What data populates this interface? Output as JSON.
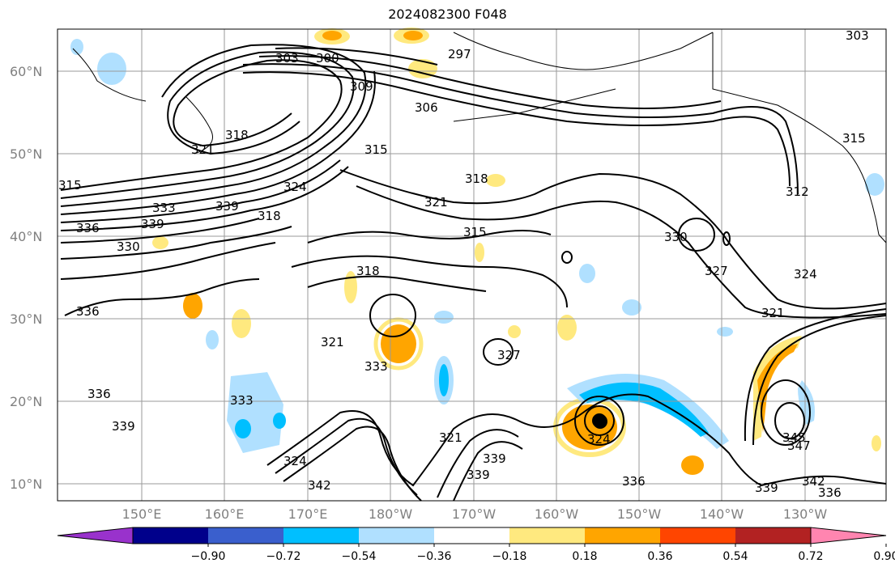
{
  "title": "2024082300 F048",
  "map": {
    "lat_labels": [
      "60°N",
      "50°N",
      "40°N",
      "30°N",
      "20°N",
      "10°N"
    ],
    "lon_labels": [
      "150°E",
      "160°E",
      "170°E",
      "180°W",
      "170°W",
      "160°W",
      "150°W",
      "140°W",
      "130°W"
    ],
    "contour_labels": [
      "303",
      "300",
      "297",
      "309",
      "306",
      "303",
      "321",
      "318",
      "315",
      "318",
      "315",
      "324",
      "318",
      "339",
      "333",
      "336",
      "339",
      "321",
      "318",
      "315",
      "330",
      "312",
      "330",
      "327",
      "324",
      "336",
      "321",
      "321",
      "327",
      "333",
      "336",
      "339",
      "333",
      "324",
      "321",
      "339",
      "342",
      "339",
      "336",
      "342",
      "339",
      "336",
      "345",
      "347",
      "315",
      "324"
    ],
    "contour_color": "#000000",
    "coastline_color": "#000000",
    "grid_color": "#9a9a9a",
    "storm_marker": "filled-circle"
  },
  "colorbar": {
    "tick_labels": [
      "−0.90",
      "−0.72",
      "−0.54",
      "−0.36",
      "−0.18",
      "0.18",
      "0.36",
      "0.54",
      "0.72",
      "0.90"
    ],
    "colors": [
      "#9932cc",
      "#00008b",
      "#3a5fcd",
      "#00bfff",
      "#b0e0ff",
      "#ffffff",
      "#ffe97f",
      "#ffa500",
      "#ff4500",
      "#b22222",
      "#ff85b0"
    ]
  }
}
